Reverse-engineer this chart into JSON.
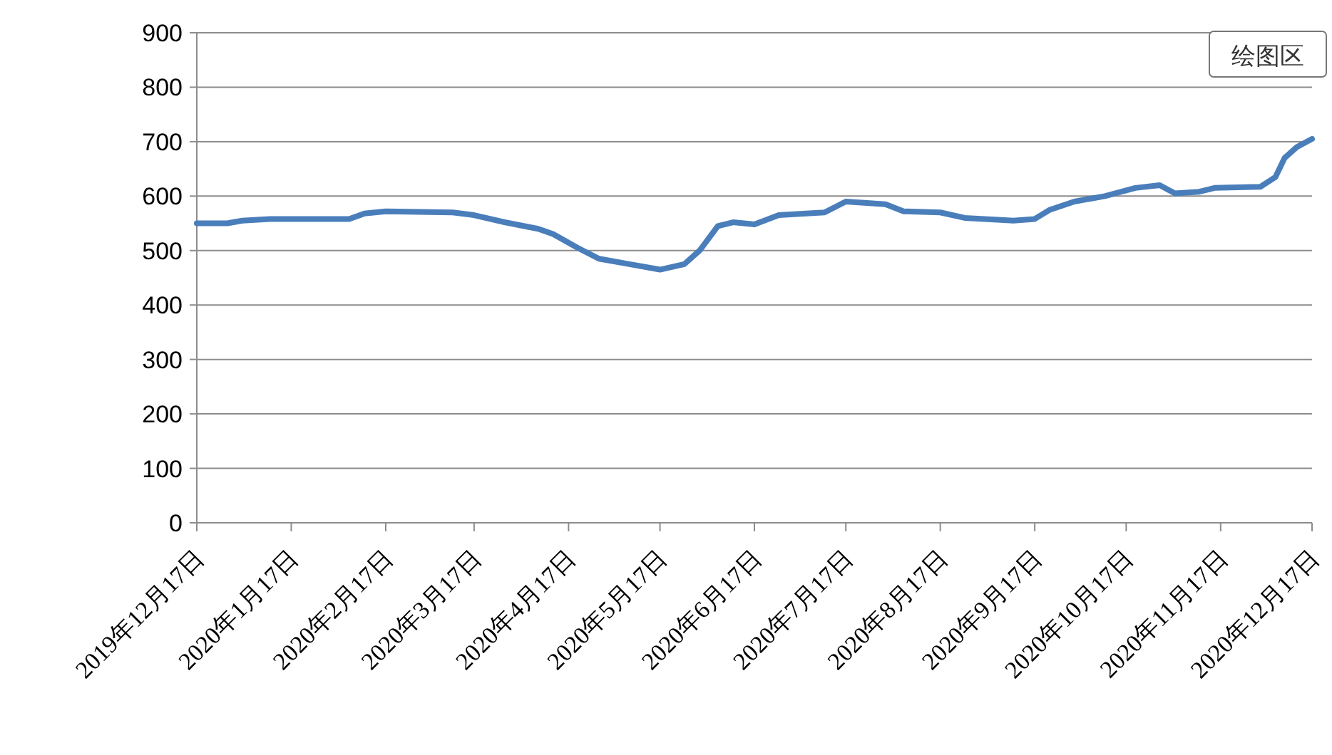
{
  "chart_data": {
    "type": "line",
    "x": [
      "2019-12-17",
      "2019-12-27",
      "2020-01-01",
      "2020-01-10",
      "2020-02-05",
      "2020-02-10",
      "2020-02-17",
      "2020-03-10",
      "2020-03-17",
      "2020-03-27",
      "2020-04-07",
      "2020-04-12",
      "2020-04-20",
      "2020-04-27",
      "2020-05-07",
      "2020-05-17",
      "2020-05-25",
      "2020-05-30",
      "2020-06-05",
      "2020-06-10",
      "2020-06-17",
      "2020-06-25",
      "2020-07-10",
      "2020-07-17",
      "2020-07-30",
      "2020-08-05",
      "2020-08-17",
      "2020-08-25",
      "2020-09-10",
      "2020-09-17",
      "2020-09-22",
      "2020-09-30",
      "2020-10-10",
      "2020-10-20",
      "2020-10-28",
      "2020-11-02",
      "2020-11-10",
      "2020-11-15",
      "2020-11-30",
      "2020-12-05",
      "2020-12-08",
      "2020-12-12",
      "2020-12-17"
    ],
    "series": [
      {
        "color": "#4a7ebb",
        "values": [
          550,
          550,
          555,
          558,
          558,
          568,
          572,
          570,
          565,
          552,
          540,
          530,
          505,
          485,
          475,
          465,
          475,
          500,
          545,
          552,
          548,
          565,
          570,
          590,
          585,
          572,
          570,
          560,
          555,
          558,
          575,
          590,
          600,
          615,
          620,
          605,
          608,
          615,
          617,
          635,
          670,
          690,
          705
        ]
      }
    ],
    "xlim": [
      "2019-12-17",
      "2020-12-17"
    ],
    "xticks": [
      {
        "value": "2019-12-17",
        "label": "2019年12月17日"
      },
      {
        "value": "2020-01-17",
        "label": "2020年1月17日"
      },
      {
        "value": "2020-02-17",
        "label": "2020年2月17日"
      },
      {
        "value": "2020-03-17",
        "label": "2020年3月17日"
      },
      {
        "value": "2020-04-17",
        "label": "2020年4月17日"
      },
      {
        "value": "2020-05-17",
        "label": "2020年5月17日"
      },
      {
        "value": "2020-06-17",
        "label": "2020年6月17日"
      },
      {
        "value": "2020-07-17",
        "label": "2020年7月17日"
      },
      {
        "value": "2020-08-17",
        "label": "2020年8月17日"
      },
      {
        "value": "2020-09-17",
        "label": "2020年9月17日"
      },
      {
        "value": "2020-10-17",
        "label": "2020年10月17日"
      },
      {
        "value": "2020-11-17",
        "label": "2020年11月17日"
      },
      {
        "value": "2020-12-17",
        "label": "2020年12月17日"
      }
    ],
    "ylim": [
      0,
      900
    ],
    "yticks": [
      0,
      100,
      200,
      300,
      400,
      500,
      600,
      700,
      800,
      900
    ],
    "grid": "y",
    "marker": "none",
    "line_style": "solid",
    "annotations": [
      "绘图区"
    ]
  }
}
